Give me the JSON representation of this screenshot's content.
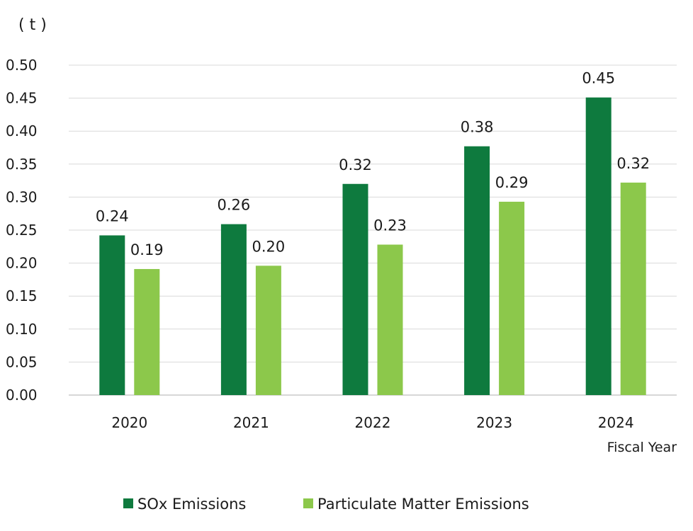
{
  "chart_data": {
    "type": "bar",
    "unit_label": "( t )",
    "xlabel": "Fiscal Year",
    "ylabel": "",
    "ylim": [
      0,
      0.5
    ],
    "ytick_step": 0.05,
    "y_ticks": [
      "0.00",
      "0.05",
      "0.10",
      "0.15",
      "0.20",
      "0.25",
      "0.30",
      "0.35",
      "0.40",
      "0.45",
      "0.50"
    ],
    "grid": true,
    "legend_position": "bottom",
    "categories": [
      "2020",
      "2021",
      "2022",
      "2023",
      "2024"
    ],
    "series": [
      {
        "name": "SOx Emissions",
        "color": "#0e7a3e",
        "values": [
          0.242,
          0.259,
          0.32,
          0.377,
          0.451
        ],
        "labels": [
          "0.24",
          "0.26",
          "0.32",
          "0.38",
          "0.45"
        ]
      },
      {
        "name": "Particulate Matter Emissions",
        "color": "#8cc84b",
        "values": [
          0.191,
          0.196,
          0.228,
          0.293,
          0.322
        ],
        "labels": [
          "0.19",
          "0.20",
          "0.23",
          "0.29",
          "0.32"
        ]
      }
    ]
  }
}
